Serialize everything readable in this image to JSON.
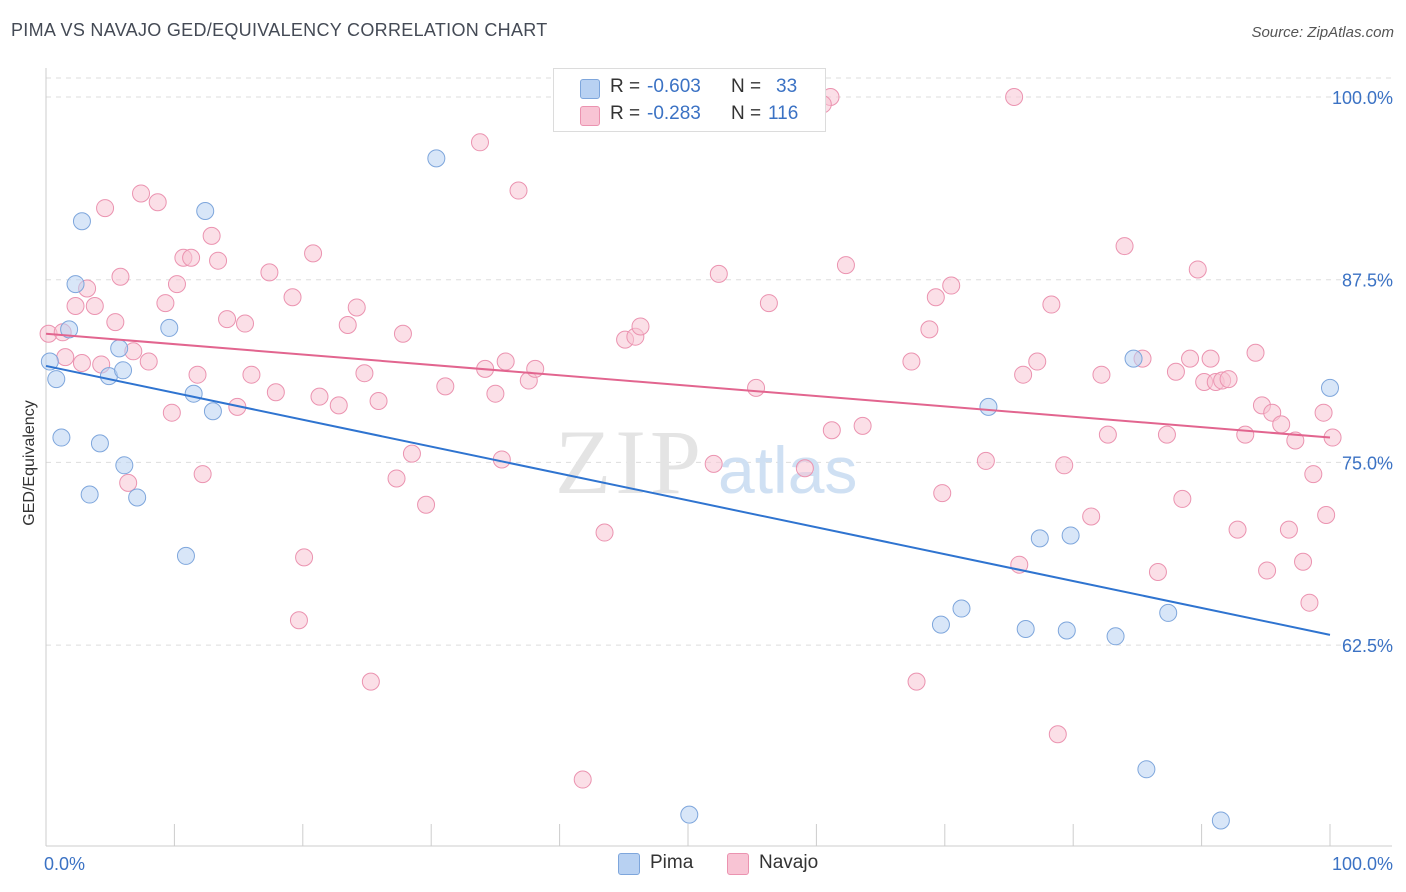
{
  "title": "PIMA VS NAVAJO GED/EQUIVALENCY CORRELATION CHART",
  "source": "Source: ZipAtlas.com",
  "watermark": {
    "zip": "ZIP",
    "atlas": "atlas"
  },
  "legend": {
    "rows": [
      {
        "r_label": "R =",
        "r_value": "-0.603",
        "n_label": "N =",
        "n_value": "33"
      },
      {
        "r_label": "R =",
        "r_value": "-0.283",
        "n_label": "N =",
        "n_value": "116"
      }
    ]
  },
  "colors": {
    "pima_fill": "#b8d1f2",
    "pima_stroke": "#7ea6dc",
    "pima_line": "#2f74d0",
    "navajo_fill": "#f8c4d4",
    "navajo_stroke": "#eb93b0",
    "navajo_line": "#e2658f",
    "axis_text": "#3b72c4",
    "grid": "#dddddd"
  },
  "chart_data": {
    "type": "scatter",
    "title": "PIMA VS NAVAJO GED/EQUIVALENCY CORRELATION CHART",
    "xlabel": "",
    "ylabel": "GED/Equivalency",
    "xlim": [
      0,
      100
    ],
    "ylim": [
      49.3,
      101.3
    ],
    "x_tick_labels": [
      "0.0%",
      "100.0%"
    ],
    "y_ticks": [
      62.5,
      75.0,
      87.5,
      100.0
    ],
    "y_tick_labels": [
      "62.5%",
      "75.0%",
      "87.5%",
      "100.0%"
    ],
    "grid": "horizontal dashed",
    "series": [
      {
        "name": "Pima",
        "r": -0.603,
        "n": 33,
        "trend": {
          "x": [
            0,
            100
          ],
          "y": [
            81.6,
            63.2
          ]
        },
        "points": [
          [
            0.3,
            81.9
          ],
          [
            0.8,
            80.7
          ],
          [
            1.2,
            76.7
          ],
          [
            1.8,
            84.1
          ],
          [
            2.3,
            87.2
          ],
          [
            2.8,
            91.5
          ],
          [
            3.4,
            72.8
          ],
          [
            4.2,
            76.3
          ],
          [
            4.9,
            80.9
          ],
          [
            5.7,
            82.8
          ],
          [
            6.0,
            81.3
          ],
          [
            6.1,
            74.8
          ],
          [
            7.1,
            72.6
          ],
          [
            9.6,
            84.2
          ],
          [
            10.9,
            68.6
          ],
          [
            11.5,
            79.7
          ],
          [
            12.4,
            92.2
          ],
          [
            13.0,
            78.5
          ],
          [
            30.4,
            95.8
          ],
          [
            50.1,
            50.9
          ],
          [
            69.7,
            63.9
          ],
          [
            71.3,
            65.0
          ],
          [
            73.4,
            78.8
          ],
          [
            76.3,
            63.6
          ],
          [
            77.4,
            69.8
          ],
          [
            79.5,
            63.5
          ],
          [
            79.8,
            70.0
          ],
          [
            83.3,
            63.1
          ],
          [
            84.7,
            82.1
          ],
          [
            85.7,
            54.0
          ],
          [
            87.4,
            64.7
          ],
          [
            91.5,
            50.5
          ],
          [
            100.0,
            80.1
          ]
        ]
      },
      {
        "name": "Navajo",
        "r": -0.283,
        "n": 116,
        "trend": {
          "x": [
            0,
            100
          ],
          "y": [
            83.8,
            76.7
          ]
        },
        "points": [
          [
            0.2,
            83.8
          ],
          [
            1.3,
            83.9
          ],
          [
            1.5,
            82.2
          ],
          [
            2.3,
            85.7
          ],
          [
            2.8,
            81.8
          ],
          [
            3.2,
            86.9
          ],
          [
            3.8,
            85.7
          ],
          [
            4.3,
            81.7
          ],
          [
            4.6,
            92.4
          ],
          [
            5.4,
            84.6
          ],
          [
            5.8,
            87.7
          ],
          [
            6.4,
            73.6
          ],
          [
            6.8,
            82.6
          ],
          [
            7.4,
            93.4
          ],
          [
            8.0,
            81.9
          ],
          [
            8.7,
            92.8
          ],
          [
            9.3,
            85.9
          ],
          [
            9.8,
            78.4
          ],
          [
            10.2,
            87.2
          ],
          [
            10.7,
            89.0
          ],
          [
            11.3,
            89.0
          ],
          [
            11.8,
            81.0
          ],
          [
            12.2,
            74.2
          ],
          [
            12.9,
            90.5
          ],
          [
            13.4,
            88.8
          ],
          [
            14.1,
            84.8
          ],
          [
            14.9,
            78.8
          ],
          [
            15.5,
            84.5
          ],
          [
            16.0,
            81.0
          ],
          [
            17.4,
            88.0
          ],
          [
            17.9,
            79.8
          ],
          [
            19.2,
            86.3
          ],
          [
            19.7,
            64.2
          ],
          [
            20.1,
            68.5
          ],
          [
            20.8,
            89.3
          ],
          [
            21.3,
            79.5
          ],
          [
            22.8,
            78.9
          ],
          [
            23.5,
            84.4
          ],
          [
            24.2,
            85.6
          ],
          [
            24.8,
            81.1
          ],
          [
            25.3,
            60.0
          ],
          [
            25.9,
            79.2
          ],
          [
            27.3,
            73.9
          ],
          [
            27.8,
            83.8
          ],
          [
            28.5,
            75.6
          ],
          [
            29.6,
            72.1
          ],
          [
            31.1,
            80.2
          ],
          [
            33.8,
            96.9
          ],
          [
            34.2,
            81.4
          ],
          [
            35.0,
            79.7
          ],
          [
            35.5,
            75.2
          ],
          [
            35.8,
            81.9
          ],
          [
            36.8,
            93.6
          ],
          [
            37.6,
            80.6
          ],
          [
            38.1,
            81.4
          ],
          [
            41.8,
            53.3
          ],
          [
            43.5,
            70.2
          ],
          [
            45.1,
            83.4
          ],
          [
            45.9,
            83.6
          ],
          [
            46.3,
            84.3
          ],
          [
            52.0,
            74.9
          ],
          [
            52.4,
            87.9
          ],
          [
            52.9,
            99.8
          ],
          [
            55.3,
            80.1
          ],
          [
            56.3,
            85.9
          ],
          [
            59.1,
            74.6
          ],
          [
            61.2,
            77.2
          ],
          [
            62.3,
            88.5
          ],
          [
            63.6,
            77.5
          ],
          [
            67.4,
            81.9
          ],
          [
            67.8,
            60.0
          ],
          [
            68.8,
            84.1
          ],
          [
            69.3,
            86.3
          ],
          [
            69.8,
            72.9
          ],
          [
            70.5,
            87.1
          ],
          [
            73.2,
            75.1
          ],
          [
            75.8,
            68.0
          ],
          [
            76.1,
            81.0
          ],
          [
            77.2,
            81.9
          ],
          [
            78.3,
            85.8
          ],
          [
            78.8,
            56.4
          ],
          [
            79.3,
            74.8
          ],
          [
            81.4,
            71.3
          ],
          [
            82.2,
            81.0
          ],
          [
            82.7,
            76.9
          ],
          [
            84.0,
            89.8
          ],
          [
            85.4,
            82.1
          ],
          [
            86.6,
            67.5
          ],
          [
            87.3,
            76.9
          ],
          [
            88.0,
            81.2
          ],
          [
            88.5,
            72.5
          ],
          [
            89.1,
            82.1
          ],
          [
            89.7,
            88.2
          ],
          [
            90.2,
            80.5
          ],
          [
            90.7,
            82.1
          ],
          [
            91.1,
            80.5
          ],
          [
            91.6,
            80.6
          ],
          [
            92.1,
            80.7
          ],
          [
            92.8,
            70.4
          ],
          [
            93.4,
            76.9
          ],
          [
            94.2,
            82.5
          ],
          [
            94.7,
            78.9
          ],
          [
            95.1,
            67.6
          ],
          [
            95.5,
            78.4
          ],
          [
            96.2,
            77.6
          ],
          [
            96.8,
            70.4
          ],
          [
            97.3,
            76.5
          ],
          [
            97.9,
            68.2
          ],
          [
            98.4,
            65.4
          ],
          [
            98.7,
            74.2
          ],
          [
            99.5,
            78.4
          ],
          [
            99.7,
            71.4
          ],
          [
            100.2,
            76.7
          ],
          [
            61.1,
            100.0
          ],
          [
            75.4,
            100.0
          ],
          [
            60.5,
            99.5
          ]
        ]
      }
    ]
  }
}
